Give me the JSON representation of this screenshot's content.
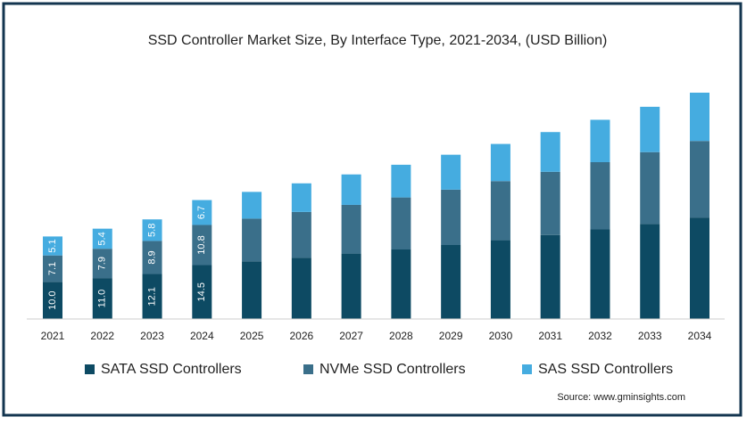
{
  "chart_data": {
    "type": "stacked-bar",
    "title": "SSD Controller  Market Size, By Interface Type, 2021-2034, (USD Billion)",
    "categories": [
      "2021",
      "2022",
      "2023",
      "2024",
      "2025",
      "2026",
      "2027",
      "2028",
      "2029",
      "2030",
      "2031",
      "2032",
      "2033",
      "2034"
    ],
    "series": [
      {
        "name": "SATA SSD Controllers",
        "color": "#0d4a63",
        "values": [
          10.0,
          11.0,
          12.1,
          14.5,
          15.5,
          16.5,
          17.6,
          18.7,
          19.9,
          21.2,
          22.6,
          24.1,
          25.6,
          27.3
        ],
        "value_labels": [
          "10.0",
          "11.0",
          "12.1",
          "14.5",
          null,
          null,
          null,
          null,
          null,
          null,
          null,
          null,
          null,
          null
        ]
      },
      {
        "name": "NVMe SSD Controllers",
        "color": "#3a6f8a",
        "values": [
          7.1,
          7.9,
          8.9,
          10.8,
          11.5,
          12.3,
          13.1,
          14.0,
          14.9,
          15.9,
          17.0,
          18.1,
          19.3,
          20.6
        ],
        "value_labels": [
          "7.1",
          "7.9",
          "8.9",
          "10.8",
          null,
          null,
          null,
          null,
          null,
          null,
          null,
          null,
          null,
          null
        ]
      },
      {
        "name": "SAS SSD Controllers",
        "color": "#45ace0",
        "values": [
          5.1,
          5.4,
          5.8,
          6.7,
          7.2,
          7.7,
          8.2,
          8.8,
          9.4,
          10.0,
          10.7,
          11.4,
          12.2,
          13.0
        ],
        "value_labels": [
          "5.1",
          "5.4",
          "5.8",
          "6.7",
          null,
          null,
          null,
          null,
          null,
          null,
          null,
          null,
          null,
          null
        ]
      }
    ],
    "source": "Source: www.gminsights.com"
  }
}
